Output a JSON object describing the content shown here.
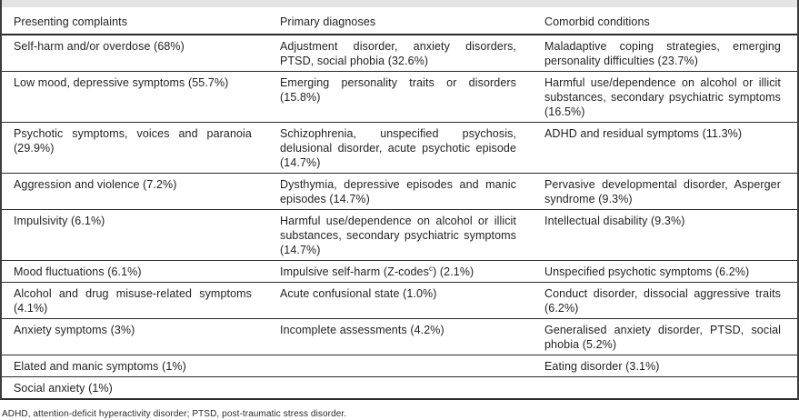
{
  "table": {
    "headers": [
      "Presenting complaints",
      "Primary diagnoses",
      "Comorbid conditions"
    ],
    "rows": [
      {
        "complaint": "Self-harm and/or overdose (68%)",
        "diagnosis": "Adjustment disorder, anxiety disorders, PTSD, social phobia (32.6%)",
        "comorbid": "Maladaptive coping strategies, emerging personality difficulties (23.7%)"
      },
      {
        "complaint": "Low mood, depressive symptoms (55.7%)",
        "diagnosis": "Emerging personality traits or disorders (15.8%)",
        "comorbid": "Harmful use/dependence on alcohol or illicit substances, secondary psychiatric symptoms (16.5%)"
      },
      {
        "complaint": "Psychotic symptoms, voices and paranoia (29.9%)",
        "diagnosis": "Schizophrenia, unspecified psychosis, delusional disorder, acute psychotic episode (14.7%)",
        "comorbid": "ADHD and residual symptoms (11.3%)"
      },
      {
        "complaint": "Aggression and violence (7.2%)",
        "diagnosis": "Dysthymia, depressive episodes and manic episodes (14.7%)",
        "comorbid": "Pervasive developmental disorder, Asperger syndrome (9.3%)"
      },
      {
        "complaint": "Impulsivity (6.1%)",
        "diagnosis": "Harmful use/dependence on alcohol or illicit substances, secondary psychiatric symptoms (14.7%)",
        "comorbid": "Intellectual disability (9.3%)"
      },
      {
        "complaint": "Mood fluctuations (6.1%)",
        "diagnosis_pre": "Impulsive self-harm (Z-codes",
        "diagnosis_sup": "c",
        "diagnosis_post": ") (2.1%)",
        "comorbid": "Unspecified psychotic symptoms (6.2%)"
      },
      {
        "complaint": "Alcohol and drug misuse-related symptoms (4.1%)",
        "diagnosis": "Acute confusional state (1.0%)",
        "comorbid": "Conduct disorder, dissocial aggressive traits (6.2%)"
      },
      {
        "complaint": "Anxiety symptoms (3%)",
        "diagnosis": "Incomplete assessments (4.2%)",
        "comorbid": "Generalised anxiety disorder, PTSD, social phobia (5.2%)"
      },
      {
        "complaint": "Elated and manic symptoms (1%)",
        "diagnosis": "",
        "comorbid": "Eating disorder (3.1%)"
      },
      {
        "complaint": "Social anxiety (1%)",
        "diagnosis": "",
        "comorbid": ""
      }
    ]
  },
  "footnote": "ADHD, attention-deficit hyperactivity disorder; PTSD, post-traumatic stress disorder.",
  "colors": {
    "rule": "#2b2b2b",
    "text": "#1f1f1f",
    "title_bar_bg": "#e4e4e4"
  }
}
